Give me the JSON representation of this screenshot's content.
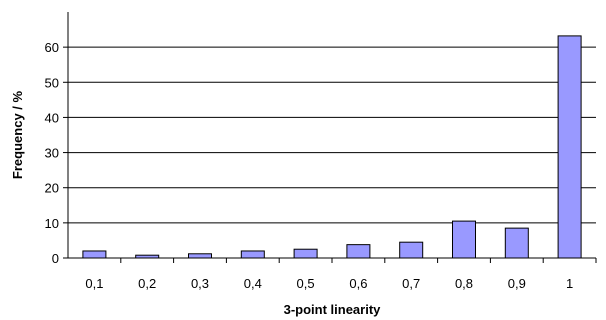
{
  "chart_data": {
    "type": "bar",
    "categories": [
      "0,1",
      "0,2",
      "0,3",
      "0,4",
      "0,5",
      "0,6",
      "0,7",
      "0,8",
      "0,9",
      "1"
    ],
    "values": [
      2.0,
      0.8,
      1.2,
      2.0,
      2.5,
      3.8,
      4.5,
      10.5,
      8.5,
      63.2
    ],
    "xlabel": "3-point linearity",
    "ylabel": "Frequency / %",
    "ylim": [
      0,
      70
    ],
    "yticks": [
      0,
      10,
      20,
      30,
      40,
      50,
      60
    ],
    "grid": true,
    "legend": "none",
    "colors": {
      "bar_fill": "#9999ff",
      "bar_stroke": "#000000",
      "grid": "#000000",
      "axis": "#000000"
    }
  }
}
